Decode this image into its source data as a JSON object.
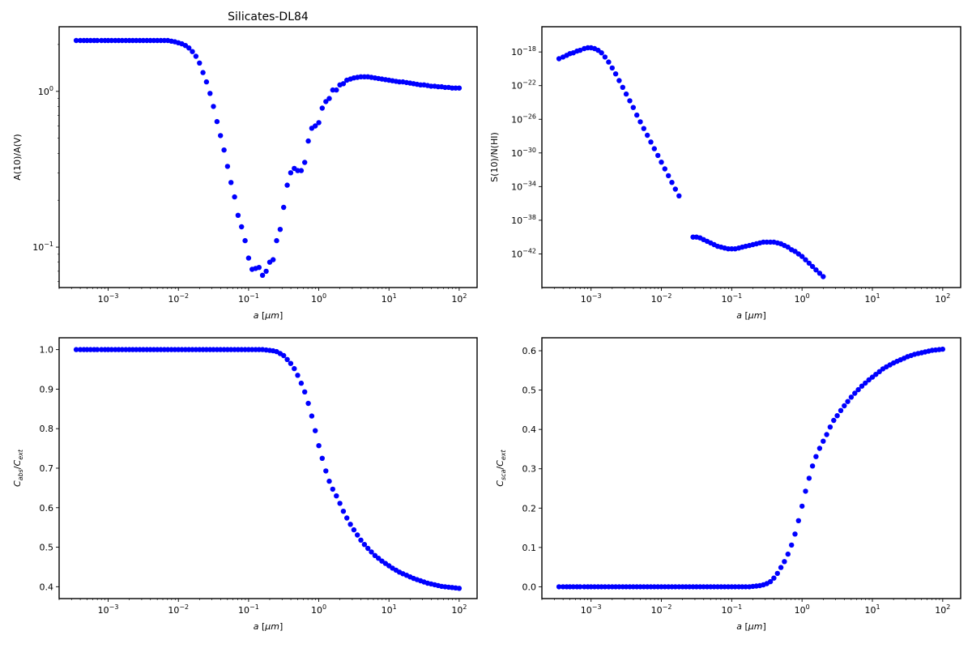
{
  "chart_data": [
    {
      "type": "scatter",
      "title": "Silicates-DL84",
      "xlabel": "a [μm]",
      "ylabel": "A(10)/A(V)",
      "x_scale": "log",
      "y_scale": "log",
      "xlim": [
        0.0002,
        180
      ],
      "ylim": [
        0.055,
        2.6
      ],
      "x_ticks": [
        0.001,
        0.01,
        0.1,
        1,
        10,
        100
      ],
      "x_tick_labels": [
        [
          "10",
          "−3"
        ],
        [
          "10",
          "−2"
        ],
        [
          "10",
          "−1"
        ],
        [
          "10",
          "0"
        ],
        [
          "10",
          "1"
        ],
        [
          "10",
          "2"
        ]
      ],
      "y_ticks": [
        0.1,
        1
      ],
      "y_tick_labels": [
        [
          "10",
          "−1"
        ],
        [
          "10",
          "0"
        ]
      ],
      "marker_color": "#0000ff",
      "x": [
        0.00035,
        0.0004,
        0.00045,
        0.0005,
        0.00056,
        0.00063,
        0.0007,
        0.0008,
        0.0009,
        0.001,
        0.00112,
        0.00126,
        0.00141,
        0.00158,
        0.00178,
        0.002,
        0.00224,
        0.00251,
        0.00282,
        0.00316,
        0.00355,
        0.00398,
        0.00447,
        0.00501,
        0.00562,
        0.00631,
        0.00708,
        0.00794,
        0.00891,
        0.01,
        0.0112,
        0.0126,
        0.0141,
        0.0158,
        0.0178,
        0.02,
        0.0224,
        0.0251,
        0.0282,
        0.0316,
        0.0355,
        0.0398,
        0.0447,
        0.0501,
        0.0562,
        0.0631,
        0.0708,
        0.0794,
        0.0891,
        0.1,
        0.112,
        0.126,
        0.141,
        0.158,
        0.178,
        0.2,
        0.224,
        0.251,
        0.282,
        0.316,
        0.355,
        0.398,
        0.447,
        0.501,
        0.562,
        0.631,
        0.708,
        0.794,
        0.891,
        1.0,
        1.12,
        1.26,
        1.41,
        1.58,
        1.78,
        2.0,
        2.24,
        2.51,
        2.82,
        3.16,
        3.55,
        3.98,
        4.47,
        5.01,
        5.62,
        6.31,
        7.08,
        7.94,
        8.91,
        10.0,
        11.2,
        12.6,
        14.1,
        15.8,
        17.8,
        20.0,
        22.4,
        25.1,
        28.2,
        31.6,
        35.5,
        39.8,
        44.7,
        50.1,
        56.2,
        63.1,
        70.8,
        79.4,
        89.1,
        100.0
      ],
      "y": [
        2.12,
        2.12,
        2.12,
        2.12,
        2.12,
        2.12,
        2.12,
        2.12,
        2.12,
        2.12,
        2.12,
        2.12,
        2.12,
        2.12,
        2.12,
        2.12,
        2.12,
        2.12,
        2.12,
        2.12,
        2.12,
        2.12,
        2.12,
        2.12,
        2.12,
        2.12,
        2.12,
        2.1,
        2.08,
        2.05,
        2.02,
        1.97,
        1.9,
        1.8,
        1.68,
        1.52,
        1.32,
        1.15,
        0.97,
        0.8,
        0.64,
        0.52,
        0.42,
        0.33,
        0.26,
        0.21,
        0.16,
        0.135,
        0.11,
        0.085,
        0.072,
        0.073,
        0.074,
        0.066,
        0.07,
        0.08,
        0.083,
        0.11,
        0.13,
        0.18,
        0.25,
        0.3,
        0.32,
        0.31,
        0.31,
        0.35,
        0.48,
        0.58,
        0.6,
        0.63,
        0.78,
        0.86,
        0.9,
        1.02,
        1.02,
        1.1,
        1.12,
        1.18,
        1.2,
        1.22,
        1.23,
        1.24,
        1.24,
        1.24,
        1.23,
        1.22,
        1.21,
        1.2,
        1.19,
        1.18,
        1.17,
        1.16,
        1.15,
        1.15,
        1.14,
        1.13,
        1.12,
        1.11,
        1.1,
        1.1,
        1.09,
        1.08,
        1.08,
        1.07,
        1.07,
        1.06,
        1.06,
        1.05,
        1.05,
        1.05
      ]
    },
    {
      "type": "scatter",
      "title": "",
      "xlabel": "a [μm]",
      "ylabel": "S(10)/N(HI)",
      "x_scale": "log",
      "y_scale": "log",
      "xlim": [
        0.0002,
        180
      ],
      "ylim": [
        1e-46,
        1e-15
      ],
      "x_ticks": [
        0.001,
        0.01,
        0.1,
        1,
        10,
        100
      ],
      "x_tick_labels": [
        [
          "10",
          "−3"
        ],
        [
          "10",
          "−2"
        ],
        [
          "10",
          "−1"
        ],
        [
          "10",
          "0"
        ],
        [
          "10",
          "1"
        ],
        [
          "10",
          "2"
        ]
      ],
      "y_ticks": [
        1e-42,
        1e-38,
        1e-34,
        1e-30,
        1e-26,
        1e-22,
        1e-18
      ],
      "y_tick_labels": [
        [
          "10",
          "−42"
        ],
        [
          "10",
          "−38"
        ],
        [
          "10",
          "−34"
        ],
        [
          "10",
          "−30"
        ],
        [
          "10",
          "−26"
        ],
        [
          "10",
          "−22"
        ],
        [
          "10",
          "−18"
        ]
      ],
      "marker_color": "#0000ff",
      "x": [
        0.00035,
        0.0004,
        0.00045,
        0.0005,
        0.00056,
        0.00063,
        0.0007,
        0.0008,
        0.0009,
        0.001,
        0.00112,
        0.00126,
        0.00141,
        0.00158,
        0.00178,
        0.002,
        0.00224,
        0.00251,
        0.00282,
        0.00316,
        0.00355,
        0.00398,
        0.00447,
        0.00501,
        0.00562,
        0.00631,
        0.00708,
        0.00794,
        0.00891,
        0.01,
        0.0112,
        0.0126,
        0.0141,
        0.0158,
        0.0178,
        0.0282,
        0.0316,
        0.0355,
        0.0398,
        0.0447,
        0.0501,
        0.0562,
        0.0631,
        0.0708,
        0.0794,
        0.0891,
        0.1,
        0.112,
        0.126,
        0.141,
        0.158,
        0.178,
        0.2,
        0.224,
        0.251,
        0.282,
        0.316,
        0.355,
        0.398,
        0.447,
        0.501,
        0.562,
        0.631,
        0.708,
        0.794,
        0.891,
        1.0,
        1.12,
        1.26,
        1.41,
        1.58,
        1.78,
        2.0
      ],
      "log10_y": [
        -18.8,
        -18.6,
        -18.4,
        -18.2,
        -18.1,
        -17.9,
        -17.8,
        -17.6,
        -17.5,
        -17.5,
        -17.6,
        -17.8,
        -18.1,
        -18.6,
        -19.2,
        -19.9,
        -20.6,
        -21.4,
        -22.2,
        -23.0,
        -23.8,
        -24.6,
        -25.5,
        -26.3,
        -27.1,
        -27.9,
        -28.7,
        -29.5,
        -30.3,
        -31.1,
        -31.9,
        -32.7,
        -33.5,
        -34.3,
        -35.1,
        -40.0,
        -40.0,
        -40.1,
        -40.3,
        -40.5,
        -40.7,
        -40.9,
        -41.1,
        -41.2,
        -41.3,
        -41.4,
        -41.4,
        -41.4,
        -41.3,
        -41.2,
        -41.1,
        -41.0,
        -40.9,
        -40.8,
        -40.7,
        -40.6,
        -40.6,
        -40.6,
        -40.6,
        -40.7,
        -40.8,
        -41.0,
        -41.2,
        -41.5,
        -41.7,
        -42.0,
        -42.3,
        -42.7,
        -43.1,
        -43.5,
        -43.9,
        -44.3,
        -44.7
      ]
    },
    {
      "type": "scatter",
      "title": "",
      "xlabel": "a [μm]",
      "ylabel": "C_abs/C_ext",
      "x_scale": "log",
      "y_scale": "linear",
      "xlim": [
        0.0002,
        180
      ],
      "ylim": [
        0.37,
        1.03
      ],
      "x_ticks": [
        0.001,
        0.01,
        0.1,
        1,
        10,
        100
      ],
      "x_tick_labels": [
        [
          "10",
          "−3"
        ],
        [
          "10",
          "−2"
        ],
        [
          "10",
          "−1"
        ],
        [
          "10",
          "0"
        ],
        [
          "10",
          "1"
        ],
        [
          "10",
          "2"
        ]
      ],
      "y_ticks": [
        0.4,
        0.5,
        0.6,
        0.7,
        0.8,
        0.9,
        1.0
      ],
      "y_tick_labels": [
        [
          "0.4",
          ""
        ],
        [
          "0.5",
          ""
        ],
        [
          "0.6",
          ""
        ],
        [
          "0.7",
          ""
        ],
        [
          "0.8",
          ""
        ],
        [
          "0.9",
          ""
        ],
        [
          "1.0",
          ""
        ]
      ],
      "marker_color": "#0000ff",
      "x": [
        0.00035,
        0.0004,
        0.00045,
        0.0005,
        0.00056,
        0.00063,
        0.0007,
        0.0008,
        0.0009,
        0.001,
        0.00112,
        0.00126,
        0.00141,
        0.00158,
        0.00178,
        0.002,
        0.00224,
        0.00251,
        0.00282,
        0.00316,
        0.00355,
        0.00398,
        0.00447,
        0.00501,
        0.00562,
        0.00631,
        0.00708,
        0.00794,
        0.00891,
        0.01,
        0.0112,
        0.0126,
        0.0141,
        0.0158,
        0.0178,
        0.02,
        0.0224,
        0.0251,
        0.0282,
        0.0316,
        0.0355,
        0.0398,
        0.0447,
        0.0501,
        0.0562,
        0.0631,
        0.0708,
        0.0794,
        0.0891,
        0.1,
        0.112,
        0.126,
        0.141,
        0.158,
        0.178,
        0.2,
        0.224,
        0.251,
        0.282,
        0.316,
        0.355,
        0.398,
        0.447,
        0.501,
        0.562,
        0.631,
        0.708,
        0.794,
        0.891,
        1.0,
        1.12,
        1.26,
        1.41,
        1.58,
        1.78,
        2.0,
        2.24,
        2.51,
        2.82,
        3.16,
        3.55,
        3.98,
        4.47,
        5.01,
        5.62,
        6.31,
        7.08,
        7.94,
        8.91,
        10.0,
        11.2,
        12.6,
        14.1,
        15.8,
        17.8,
        20.0,
        22.4,
        25.1,
        28.2,
        31.6,
        35.5,
        39.8,
        44.7,
        50.1,
        56.2,
        63.1,
        70.8,
        79.4,
        89.1,
        100.0
      ],
      "y": [
        1.0,
        1.0,
        1.0,
        1.0,
        1.0,
        1.0,
        1.0,
        1.0,
        1.0,
        1.0,
        1.0,
        1.0,
        1.0,
        1.0,
        1.0,
        1.0,
        1.0,
        1.0,
        1.0,
        1.0,
        1.0,
        1.0,
        1.0,
        1.0,
        1.0,
        1.0,
        1.0,
        1.0,
        1.0,
        1.0,
        1.0,
        1.0,
        1.0,
        1.0,
        1.0,
        1.0,
        1.0,
        1.0,
        1.0,
        1.0,
        1.0,
        1.0,
        1.0,
        1.0,
        1.0,
        1.0,
        1.0,
        1.0,
        1.0,
        1.0,
        1.0,
        1.0,
        1.0,
        1.0,
        0.999,
        0.998,
        0.997,
        0.995,
        0.99,
        0.985,
        0.975,
        0.965,
        0.952,
        0.935,
        0.915,
        0.893,
        0.864,
        0.832,
        0.795,
        0.757,
        0.725,
        0.693,
        0.667,
        0.647,
        0.63,
        0.611,
        0.591,
        0.574,
        0.558,
        0.544,
        0.531,
        0.518,
        0.507,
        0.497,
        0.488,
        0.479,
        0.472,
        0.465,
        0.459,
        0.453,
        0.447,
        0.442,
        0.437,
        0.433,
        0.429,
        0.425,
        0.421,
        0.418,
        0.415,
        0.412,
        0.409,
        0.407,
        0.405,
        0.403,
        0.401,
        0.4,
        0.399,
        0.398,
        0.397,
        0.396
      ]
    },
    {
      "type": "scatter",
      "title": "",
      "xlabel": "a [μm]",
      "ylabel": "C_sca/C_ext",
      "x_scale": "log",
      "y_scale": "linear",
      "xlim": [
        0.0002,
        180
      ],
      "ylim": [
        -0.03,
        0.633
      ],
      "x_ticks": [
        0.001,
        0.01,
        0.1,
        1,
        10,
        100
      ],
      "x_tick_labels": [
        [
          "10",
          "−3"
        ],
        [
          "10",
          "−2"
        ],
        [
          "10",
          "−1"
        ],
        [
          "10",
          "0"
        ],
        [
          "10",
          "1"
        ],
        [
          "10",
          "2"
        ]
      ],
      "y_ticks": [
        0.0,
        0.1,
        0.2,
        0.3,
        0.4,
        0.5,
        0.6
      ],
      "y_tick_labels": [
        [
          "0.0",
          ""
        ],
        [
          "0.1",
          ""
        ],
        [
          "0.2",
          ""
        ],
        [
          "0.3",
          ""
        ],
        [
          "0.4",
          ""
        ],
        [
          "0.5",
          ""
        ],
        [
          "0.6",
          ""
        ]
      ],
      "marker_color": "#0000ff",
      "x": [
        0.00035,
        0.0004,
        0.00045,
        0.0005,
        0.00056,
        0.00063,
        0.0007,
        0.0008,
        0.0009,
        0.001,
        0.00112,
        0.00126,
        0.00141,
        0.00158,
        0.00178,
        0.002,
        0.00224,
        0.00251,
        0.00282,
        0.00316,
        0.00355,
        0.00398,
        0.00447,
        0.00501,
        0.00562,
        0.00631,
        0.00708,
        0.00794,
        0.00891,
        0.01,
        0.0112,
        0.0126,
        0.0141,
        0.0158,
        0.0178,
        0.02,
        0.0224,
        0.0251,
        0.0282,
        0.0316,
        0.0355,
        0.0398,
        0.0447,
        0.0501,
        0.0562,
        0.0631,
        0.0708,
        0.0794,
        0.0891,
        0.1,
        0.112,
        0.126,
        0.141,
        0.158,
        0.178,
        0.2,
        0.224,
        0.251,
        0.282,
        0.316,
        0.355,
        0.398,
        0.447,
        0.501,
        0.562,
        0.631,
        0.708,
        0.794,
        0.891,
        1.0,
        1.12,
        1.26,
        1.41,
        1.58,
        1.78,
        2.0,
        2.24,
        2.51,
        2.82,
        3.16,
        3.55,
        3.98,
        4.47,
        5.01,
        5.62,
        6.31,
        7.08,
        7.94,
        8.91,
        10.0,
        11.2,
        12.6,
        14.1,
        15.8,
        17.8,
        20.0,
        22.4,
        25.1,
        28.2,
        31.6,
        35.5,
        39.8,
        44.7,
        50.1,
        56.2,
        63.1,
        70.8,
        79.4,
        89.1,
        100.0
      ],
      "y": [
        0.0,
        0.0,
        0.0,
        0.0,
        0.0,
        0.0,
        0.0,
        0.0,
        0.0,
        0.0,
        0.0,
        0.0,
        0.0,
        0.0,
        0.0,
        0.0,
        0.0,
        0.0,
        0.0,
        0.0,
        0.0,
        0.0,
        0.0,
        0.0,
        0.0,
        0.0,
        0.0,
        0.0,
        0.0,
        0.0,
        0.0,
        0.0,
        0.0,
        0.0,
        0.0,
        0.0,
        0.0,
        0.0,
        0.0,
        0.0,
        0.0,
        0.0,
        0.0,
        0.0,
        0.0,
        0.0,
        0.0,
        0.0,
        0.0,
        0.0,
        0.0,
        0.0,
        0.0,
        0.0,
        0.0,
        0.001,
        0.002,
        0.003,
        0.005,
        0.008,
        0.013,
        0.022,
        0.034,
        0.049,
        0.064,
        0.083,
        0.106,
        0.134,
        0.168,
        0.205,
        0.243,
        0.276,
        0.307,
        0.331,
        0.352,
        0.37,
        0.387,
        0.406,
        0.423,
        0.435,
        0.448,
        0.46,
        0.471,
        0.482,
        0.492,
        0.501,
        0.51,
        0.518,
        0.526,
        0.533,
        0.54,
        0.547,
        0.554,
        0.559,
        0.564,
        0.569,
        0.573,
        0.577,
        0.581,
        0.585,
        0.588,
        0.591,
        0.593,
        0.595,
        0.597,
        0.599,
        0.601,
        0.602,
        0.603,
        0.604
      ]
    }
  ]
}
